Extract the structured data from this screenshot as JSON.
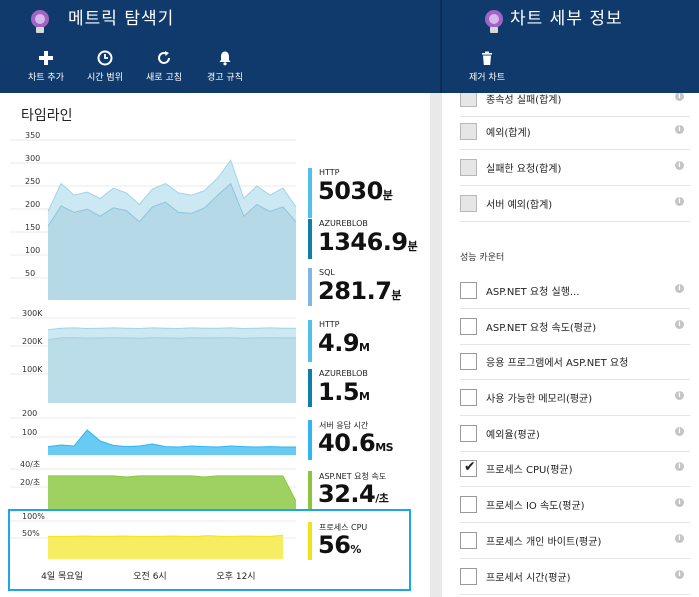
{
  "left_header": {
    "title": "메트릭 탐색기",
    "toolbar": [
      {
        "label": "차트 추가",
        "icon": "plus-icon"
      },
      {
        "label": "시간 범위",
        "icon": "clock-icon"
      },
      {
        "label": "새로 고침",
        "icon": "refresh-icon"
      },
      {
        "label": "경고 규칙",
        "icon": "bell-icon"
      }
    ]
  },
  "right_header": {
    "title": "차트 세부 정보",
    "toolbar": [
      {
        "label": "제거 차트",
        "icon": "trash-icon"
      }
    ]
  },
  "timeline": {
    "title": "타임라인",
    "x_ticks": [
      "4일 목요일",
      "오전 6시",
      "오후 12시"
    ]
  },
  "colors": {
    "header": "#0f3a6b",
    "http": "#4fc1ea",
    "azureblob": "#0e7fa6",
    "sql": "#7fb6e6",
    "server_response": "#2eb7f0",
    "aspnet_rate": "#8cc63f",
    "cpu": "#f2e318",
    "selection": "#1ea7e8"
  },
  "chart_data": [
    {
      "type": "area",
      "y_ticks": [
        "350",
        "300",
        "250",
        "200",
        "150",
        "100",
        "50"
      ],
      "ylim": [
        0,
        350
      ],
      "series": [
        {
          "name": "HTTP",
          "values": [
            190,
            250,
            225,
            232,
            218,
            240,
            230,
            205,
            238,
            250,
            230,
            225,
            235,
            262,
            300,
            218,
            245,
            225,
            240,
            200
          ]
        },
        {
          "name": "AZUREBLOB",
          "values": [
            158,
            202,
            188,
            195,
            180,
            198,
            192,
            168,
            200,
            210,
            188,
            186,
            198,
            225,
            250,
            180,
            205,
            190,
            200,
            168
          ]
        }
      ],
      "legend_values": [
        {
          "name": "HTTP",
          "value": "5030",
          "unit": "분"
        },
        {
          "name": "AZUREBLOB",
          "value": "1346.9",
          "unit": "분"
        },
        {
          "name": "SQL",
          "value": "281.7",
          "unit": "분"
        }
      ]
    },
    {
      "type": "area",
      "y_ticks": [
        "300K",
        "200K",
        "100K"
      ],
      "ylim": [
        0,
        300000
      ],
      "series": [
        {
          "name": "HTTP",
          "values": [
            250000,
            255000,
            256000,
            254000,
            255000,
            256000,
            255000,
            254000,
            256000,
            255000,
            254000,
            256000,
            255000,
            255000,
            256000,
            254000,
            255000,
            256000,
            255000,
            255000
          ]
        },
        {
          "name": "AZUREBLOB",
          "values": [
            215000,
            222000,
            223000,
            221000,
            222000,
            223000,
            222000,
            221000,
            223000,
            222000,
            221000,
            223000,
            222000,
            222000,
            223000,
            221000,
            222000,
            223000,
            222000,
            222000
          ]
        }
      ],
      "legend_values": [
        {
          "name": "HTTP",
          "value": "4.9",
          "unit": "M"
        },
        {
          "name": "AZUREBLOB",
          "value": "1.5",
          "unit": "M"
        }
      ]
    },
    {
      "type": "area",
      "y_ticks": [
        "200",
        "100"
      ],
      "ylim": [
        0,
        200
      ],
      "series": [
        {
          "name": "서버 응답 시간",
          "values": [
            42,
            50,
            45,
            125,
            70,
            48,
            42,
            45,
            55,
            42,
            40,
            45,
            42,
            40,
            45,
            42,
            40,
            42,
            40,
            40
          ]
        }
      ],
      "legend_values": [
        {
          "name": "서버 응답 시간",
          "value": "40.6",
          "unit": "MS"
        }
      ]
    },
    {
      "type": "area",
      "y_ticks": [
        "40/초",
        "20/초"
      ],
      "ylim": [
        0,
        40
      ],
      "series": [
        {
          "name": "ASP.NET 요청 속도",
          "values": [
            31,
            31,
            31,
            31,
            31,
            31,
            30,
            31,
            31,
            31,
            31,
            31,
            30,
            31,
            31,
            31,
            31,
            31,
            31,
            8
          ]
        }
      ],
      "legend_values": [
        {
          "name": "ASP.NET 요청 속도",
          "value": "32.4",
          "unit": "/초"
        }
      ]
    },
    {
      "type": "area",
      "y_ticks": [
        "100%",
        "50%"
      ],
      "ylim": [
        0,
        100
      ],
      "series": [
        {
          "name": "프로세스 CPU",
          "values": [
            55,
            55,
            55,
            56,
            55,
            55,
            56,
            55,
            55,
            55,
            56,
            55,
            55,
            57,
            55,
            55,
            56,
            55,
            55,
            58
          ]
        }
      ],
      "legend_values": [
        {
          "name": "프로세스 CPU",
          "value": "56",
          "unit": "%"
        }
      ]
    }
  ],
  "details": {
    "top_items": [
      {
        "label": "종속성 실패(합계)",
        "checked": false,
        "disabled": true
      },
      {
        "label": "예외(합계)",
        "checked": false,
        "disabled": true
      },
      {
        "label": "실패한 요청(합계)",
        "checked": false,
        "disabled": true
      },
      {
        "label": "서버 예외(합계)",
        "checked": false,
        "disabled": true
      }
    ],
    "section_label": "성능 카운터",
    "counters": [
      {
        "label": "ASP.NET 요청 실행...",
        "checked": false
      },
      {
        "label": "ASP.NET 요청 속도(평균)",
        "checked": false
      },
      {
        "label": "응용 프로그램에서 ASP.NET 요청",
        "checked": false
      },
      {
        "label": "사용 가능한 메모리(평균)",
        "checked": false
      },
      {
        "label": "예외율(평균)",
        "checked": false
      },
      {
        "label": "프로세스 CPU(평균)",
        "checked": true
      },
      {
        "label": "프로세스 IO 속도(평균)",
        "checked": false
      },
      {
        "label": "프로세스 개인 바이트(평균)",
        "checked": false
      },
      {
        "label": "프로세서 시간(평균)",
        "checked": false
      }
    ]
  }
}
